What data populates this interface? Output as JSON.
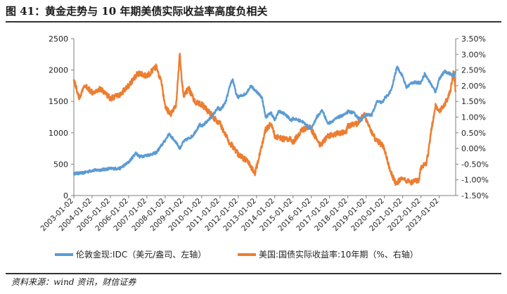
{
  "title": "图 41：黄金走势与 10 年期美债实际收益率高度负相关",
  "source": "资料来源：wind 资讯，财信证券",
  "chart_data": {
    "type": "line",
    "title": "图 41：黄金走势与 10 年期美债实际收益率高度负相关",
    "x_tick_labels": [
      "2003-01-02",
      "2004-01-02",
      "2005-01-02",
      "2006-01-02",
      "2007-01-02",
      "2008-01-02",
      "2009-01-02",
      "2010-01-02",
      "2011-01-02",
      "2012-01-02",
      "2013-01-02",
      "2014-01-02",
      "2015-01-02",
      "2016-01-02",
      "2017-01-02",
      "2018-01-02",
      "2019-01-02",
      "2020-01-02",
      "2021-01-02",
      "2022-01-02",
      "2023-01-02"
    ],
    "x_range": [
      2003.0,
      2023.9
    ],
    "left_axis": {
      "ylim": [
        0,
        2500
      ],
      "ticks": [
        0,
        500,
        1000,
        1500,
        2000,
        2500
      ],
      "tick_labels": [
        "0",
        "500",
        "1000",
        "1500",
        "2000",
        "2500"
      ]
    },
    "right_axis": {
      "ylim": [
        -1.5,
        3.5
      ],
      "ticks": [
        -1.5,
        -1.0,
        -0.5,
        0,
        0.5,
        1.0,
        1.5,
        2.0,
        2.5,
        3.0,
        3.5
      ],
      "tick_labels": [
        "-1.50%",
        "-1.00%",
        "-0.50%",
        "0.00%",
        "0.50%",
        "1.00%",
        "1.50%",
        "2.00%",
        "2.50%",
        "3.00%",
        "3.50%"
      ]
    },
    "series": [
      {
        "name": "伦敦金现:IDC（美元/盎司、左轴）",
        "axis": "left",
        "color": "#5b9bd5",
        "x": [
          2003.0,
          2003.5,
          2004.0,
          2004.5,
          2005.0,
          2005.5,
          2006.0,
          2006.4,
          2006.6,
          2007.0,
          2007.5,
          2008.0,
          2008.2,
          2008.6,
          2008.8,
          2009.0,
          2009.5,
          2009.9,
          2010.0,
          2010.5,
          2010.9,
          2011.0,
          2011.3,
          2011.6,
          2011.7,
          2011.9,
          2012.0,
          2012.4,
          2012.7,
          2012.9,
          2013.0,
          2013.3,
          2013.5,
          2013.8,
          2014.0,
          2014.2,
          2014.5,
          2014.9,
          2015.0,
          2015.5,
          2015.9,
          2016.0,
          2016.3,
          2016.6,
          2016.9,
          2017.0,
          2017.5,
          2017.9,
          2018.0,
          2018.3,
          2018.7,
          2019.0,
          2019.3,
          2019.6,
          2019.9,
          2020.0,
          2020.2,
          2020.4,
          2020.6,
          2020.7,
          2021.0,
          2021.2,
          2021.5,
          2021.9,
          2022.0,
          2022.2,
          2022.5,
          2022.8,
          2023.0,
          2023.3,
          2023.6,
          2023.8,
          2023.9
        ],
        "values": [
          350,
          360,
          400,
          410,
          430,
          430,
          530,
          680,
          620,
          640,
          680,
          880,
          980,
          850,
          750,
          860,
          950,
          1130,
          1100,
          1240,
          1400,
          1360,
          1480,
          1800,
          1850,
          1600,
          1570,
          1620,
          1750,
          1680,
          1660,
          1560,
          1250,
          1320,
          1200,
          1340,
          1310,
          1200,
          1230,
          1180,
          1080,
          1070,
          1250,
          1360,
          1150,
          1160,
          1250,
          1300,
          1340,
          1320,
          1200,
          1290,
          1280,
          1500,
          1480,
          1550,
          1600,
          1700,
          1950,
          2050,
          1900,
          1720,
          1800,
          1800,
          1800,
          1940,
          1800,
          1650,
          1860,
          1980,
          1940,
          1900,
          1980
        ]
      },
      {
        "name": "美国:国债实际收益率:10年期（%、右轴）",
        "axis": "right",
        "color": "#ed7d31",
        "x": [
          2003.0,
          2003.3,
          2003.6,
          2004.0,
          2004.5,
          2005.0,
          2005.5,
          2006.0,
          2006.5,
          2007.0,
          2007.5,
          2007.8,
          2008.0,
          2008.3,
          2008.6,
          2008.8,
          2008.9,
          2009.0,
          2009.3,
          2009.6,
          2010.0,
          2010.5,
          2010.9,
          2011.0,
          2011.5,
          2011.8,
          2012.0,
          2012.5,
          2012.9,
          2013.0,
          2013.5,
          2013.8,
          2014.0,
          2014.5,
          2014.9,
          2015.0,
          2015.5,
          2015.9,
          2016.0,
          2016.5,
          2016.9,
          2017.0,
          2017.5,
          2017.9,
          2018.0,
          2018.5,
          2018.9,
          2019.0,
          2019.5,
          2019.9,
          2020.0,
          2020.3,
          2020.6,
          2020.9,
          2021.0,
          2021.5,
          2021.9,
          2022.0,
          2022.3,
          2022.6,
          2022.8,
          2023.0,
          2023.3,
          2023.6,
          2023.8,
          2023.9
        ],
        "values": [
          2.2,
          1.6,
          2.0,
          1.8,
          1.9,
          1.6,
          1.7,
          2.0,
          2.4,
          2.3,
          2.6,
          2.1,
          1.3,
          1.1,
          1.4,
          3.0,
          2.2,
          1.7,
          1.9,
          1.5,
          1.4,
          1.1,
          0.8,
          0.8,
          0.2,
          0.0,
          -0.2,
          -0.4,
          -0.8,
          -0.6,
          0.6,
          0.8,
          0.4,
          0.3,
          0.3,
          0.2,
          0.6,
          0.7,
          0.6,
          0.1,
          0.4,
          0.4,
          0.5,
          0.5,
          0.7,
          0.8,
          1.1,
          0.9,
          0.3,
          0.1,
          0.0,
          -0.7,
          -1.1,
          -1.0,
          -1.0,
          -1.1,
          -1.0,
          -0.6,
          -0.5,
          0.7,
          1.4,
          1.2,
          1.4,
          1.8,
          2.5,
          1.8
        ]
      }
    ],
    "legend_position": "bottom-center",
    "grid": false
  }
}
